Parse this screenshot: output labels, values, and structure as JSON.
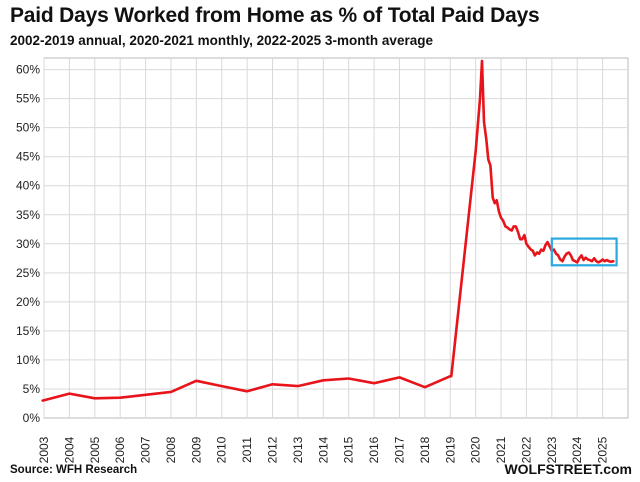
{
  "title": "Paid Days Worked from Home as % of Total Paid Days",
  "subtitle": "2002-2019 annual, 2020-2021 monthly, 2022-2025 3-month average",
  "source": "Source: WFH Research",
  "brand": "WOLFSTREET.com",
  "colors": {
    "line": "#e8141b",
    "highlight_box": "#29a8e0",
    "grid": "#d9d9d9"
  },
  "chart_data": {
    "type": "line",
    "title": "Paid Days Worked from Home as % of Total Paid Days",
    "xlabel": "",
    "ylabel": "",
    "ylim": [
      0,
      62
    ],
    "grid": true,
    "y_ticks": [
      "0%",
      "5%",
      "10%",
      "15%",
      "20%",
      "25%",
      "30%",
      "35%",
      "40%",
      "45%",
      "50%",
      "55%",
      "60%"
    ],
    "y_tick_values": [
      0,
      5,
      10,
      15,
      20,
      25,
      30,
      35,
      40,
      45,
      50,
      55,
      60
    ],
    "x_ticks": [
      "2003",
      "2004",
      "2005",
      "2006",
      "2007",
      "2008",
      "2009",
      "2010",
      "2011",
      "2012",
      "2013",
      "2014",
      "2015",
      "2016",
      "2017",
      "2018",
      "2019",
      "2020",
      "2021",
      "2022",
      "2023",
      "2024",
      "2025"
    ],
    "x_range": [
      2003,
      2026
    ],
    "series": [
      {
        "x": [
          2002.95,
          2004.0,
          2005.0,
          2006.0,
          2007.0,
          2008.0,
          2009.0,
          2010.0,
          2011.0,
          2012.0,
          2013.0,
          2014.0,
          2015.0,
          2016.0,
          2017.0,
          2018.0,
          2019.0,
          2019.04,
          2020.0,
          2020.17,
          2020.25,
          2020.33,
          2020.42,
          2020.5,
          2020.58,
          2020.67,
          2020.75,
          2020.83,
          2020.92,
          2021.0,
          2021.08,
          2021.17,
          2021.25,
          2021.33,
          2021.42,
          2021.5,
          2021.58,
          2021.67,
          2021.75,
          2021.83,
          2021.92,
          2022.0,
          2022.08,
          2022.17,
          2022.25,
          2022.33,
          2022.42,
          2022.5,
          2022.58,
          2022.67,
          2022.75,
          2022.83,
          2022.92,
          2023.0,
          2023.08,
          2023.17,
          2023.25,
          2023.33,
          2023.42,
          2023.5,
          2023.58,
          2023.67,
          2023.75,
          2023.83,
          2023.92,
          2024.0,
          2024.08,
          2024.17,
          2024.25,
          2024.33,
          2024.42,
          2024.5,
          2024.58,
          2024.67,
          2024.75,
          2024.83,
          2024.92,
          2025.0,
          2025.08,
          2025.17,
          2025.25,
          2025.33,
          2025.42
        ],
        "y": [
          3.0,
          4.2,
          3.4,
          3.5,
          4.0,
          4.5,
          6.4,
          5.5,
          4.6,
          5.8,
          5.5,
          6.5,
          6.8,
          6.0,
          7.0,
          5.3,
          7.2,
          7.2,
          46.0,
          55.0,
          61.5,
          51.0,
          48.0,
          44.5,
          43.5,
          38.0,
          37.0,
          37.5,
          35.5,
          34.5,
          34.0,
          33.0,
          32.8,
          32.5,
          32.3,
          33.0,
          33.0,
          32.0,
          30.8,
          30.8,
          31.5,
          30.0,
          29.5,
          29.0,
          28.8,
          28.0,
          28.5,
          28.3,
          29.0,
          28.8,
          29.8,
          30.3,
          29.5,
          28.8,
          29.0,
          28.3,
          28.0,
          27.3,
          27.0,
          27.8,
          28.3,
          28.5,
          28.0,
          27.2,
          27.0,
          26.8,
          27.5,
          28.0,
          27.2,
          27.6,
          27.3,
          27.2,
          27.0,
          27.5,
          27.0,
          26.8,
          27.0,
          27.3,
          27.0,
          27.2,
          27.0,
          26.9,
          27.0
        ]
      }
    ],
    "highlight_range": {
      "x": [
        2023.0,
        2025.55
      ],
      "y": [
        26.3,
        30.9
      ]
    }
  }
}
